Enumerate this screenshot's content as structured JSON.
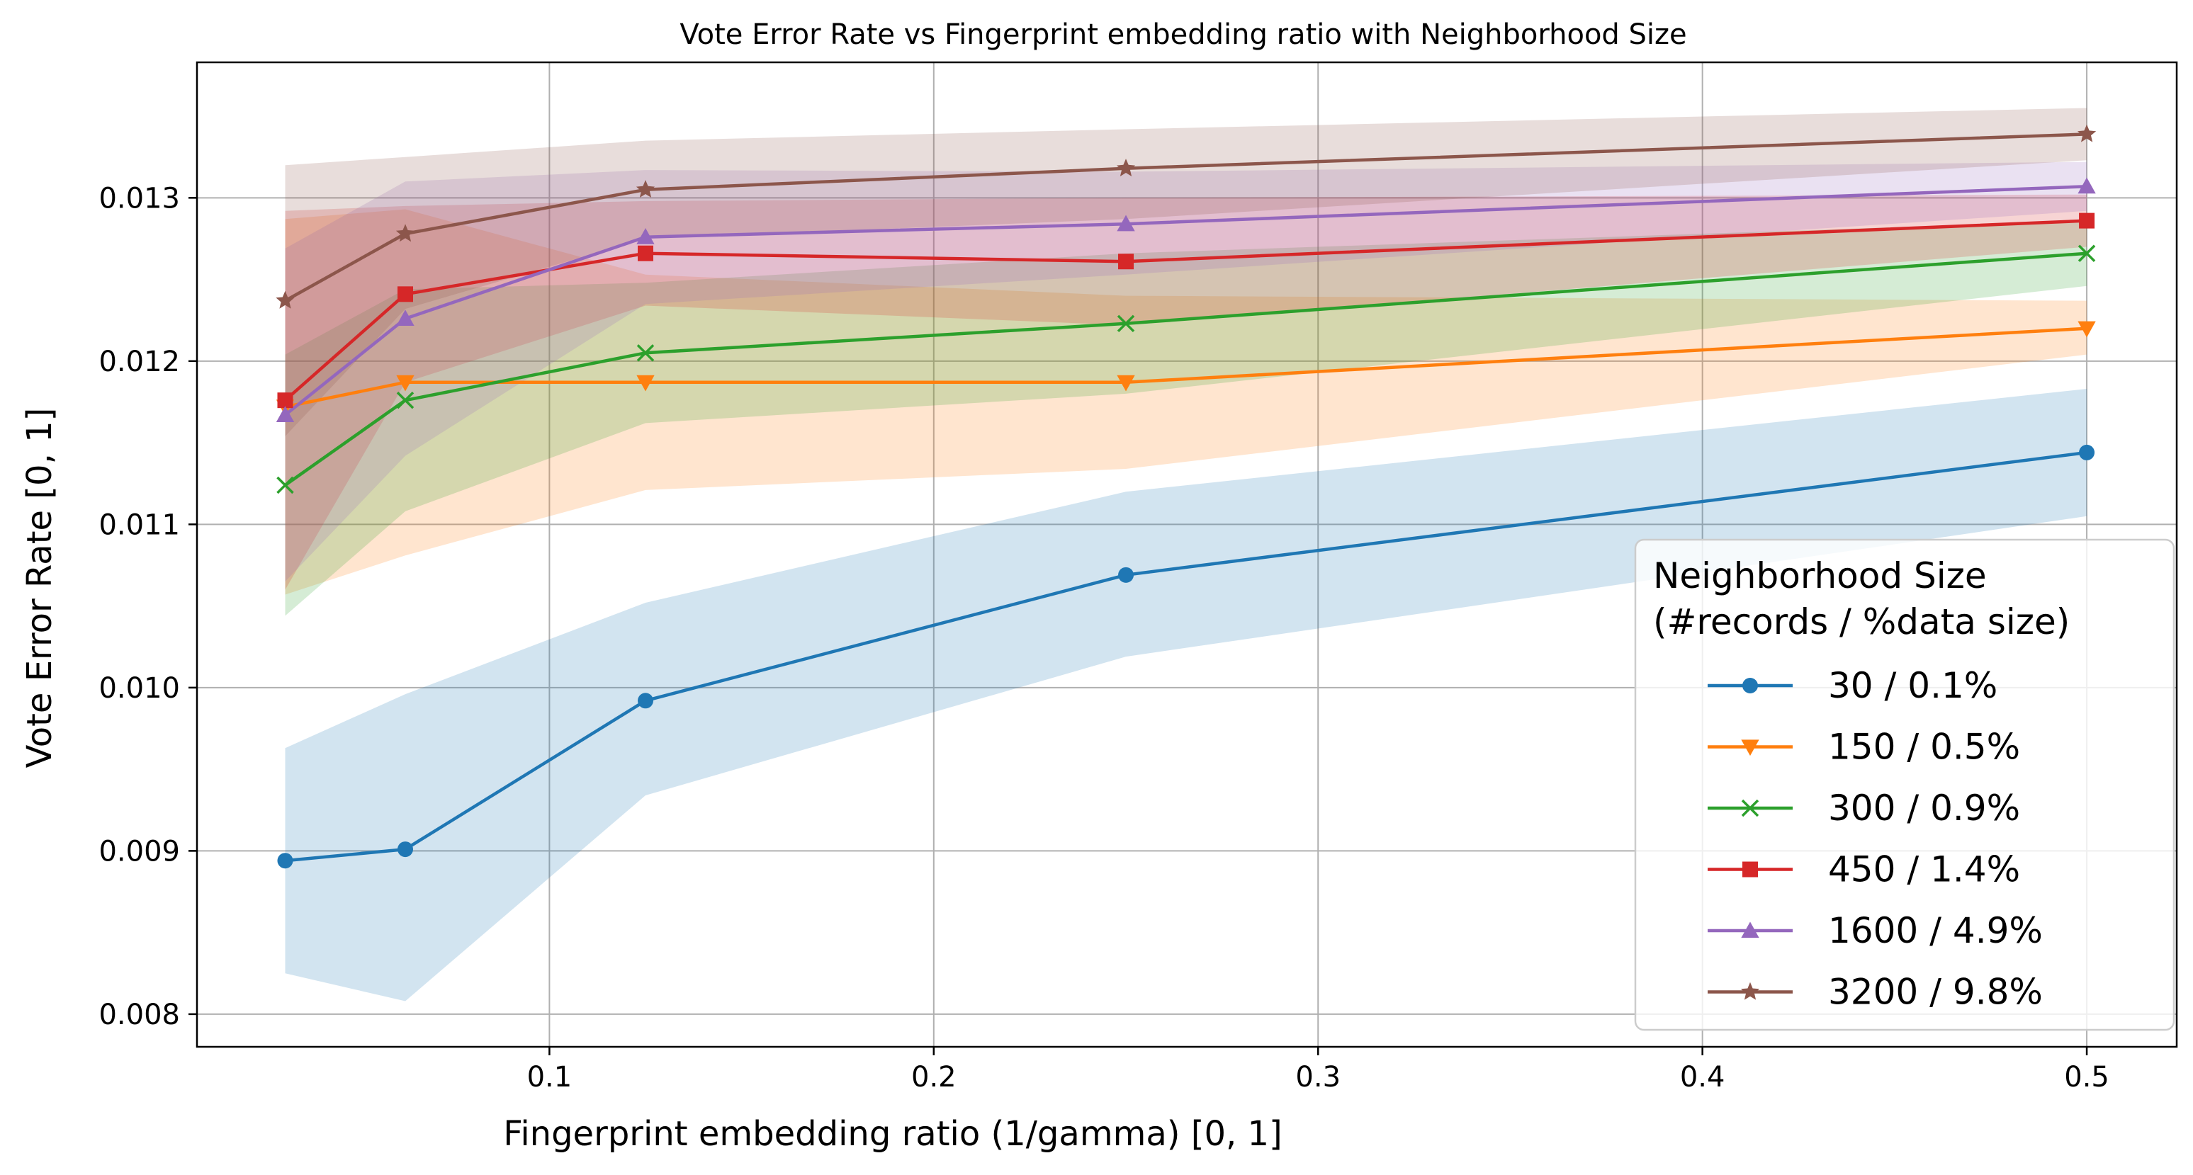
{
  "chart_data": {
    "type": "line",
    "title": "Vote Error Rate vs Fingerprint embedding ratio with Neighborhood Size",
    "xlabel": "Fingerprint embedding ratio (1/gamma) [0, 1]",
    "ylabel": "Vote Error Rate [0, 1]",
    "xlim": [
      0.0083,
      0.5234
    ],
    "ylim": [
      0.0078,
      0.01383
    ],
    "xticks": [
      0.1,
      0.2,
      0.3,
      0.4,
      0.5
    ],
    "xtick_labels": [
      "0.1",
      "0.2",
      "0.3",
      "0.4",
      "0.5"
    ],
    "yticks": [
      0.008,
      0.009,
      0.01,
      0.011,
      0.012,
      0.013
    ],
    "ytick_labels": [
      "0.008",
      "0.009",
      "0.010",
      "0.011",
      "0.012",
      "0.013"
    ],
    "grid": true,
    "legend": {
      "title_line1": "Neighborhood Size",
      "title_line2": "(#records / %data size)",
      "placement": "lower-right"
    },
    "x": [
      0.03125,
      0.0625,
      0.125,
      0.25,
      0.5
    ],
    "series": [
      {
        "name": "30 / 0.1%",
        "color": "#1f77b4",
        "marker": "circle",
        "values": [
          0.00894,
          0.00901,
          0.00992,
          0.01069,
          0.01144
        ],
        "lower": [
          0.00825,
          0.00808,
          0.00934,
          0.01019,
          0.01105
        ],
        "upper": [
          0.00963,
          0.00996,
          0.01052,
          0.0112,
          0.01183
        ]
      },
      {
        "name": "150 / 0.5%",
        "color": "#ff7f0e",
        "marker": "triangle-down",
        "values": [
          0.01172,
          0.01187,
          0.01187,
          0.01187,
          0.0122
        ],
        "lower": [
          0.01057,
          0.01081,
          0.01121,
          0.01134,
          0.01204
        ],
        "upper": [
          0.01287,
          0.01293,
          0.01253,
          0.0124,
          0.01237
        ]
      },
      {
        "name": "300 / 0.9%",
        "color": "#2ca02c",
        "marker": "x",
        "values": [
          0.01124,
          0.01176,
          0.01205,
          0.01223,
          0.01266
        ],
        "lower": [
          0.01044,
          0.01108,
          0.01162,
          0.0118,
          0.01246
        ],
        "upper": [
          0.01204,
          0.01244,
          0.01248,
          0.01266,
          0.01286
        ]
      },
      {
        "name": "450 / 1.4%",
        "color": "#d62728",
        "marker": "square",
        "values": [
          0.01176,
          0.01241,
          0.01266,
          0.01261,
          0.01286
        ],
        "lower": [
          0.0106,
          0.01187,
          0.01234,
          0.01222,
          0.0127
        ],
        "upper": [
          0.01292,
          0.01295,
          0.01298,
          0.013,
          0.01302
        ]
      },
      {
        "name": "1600 / 4.9%",
        "color": "#9467bd",
        "marker": "triangle-up",
        "values": [
          0.01167,
          0.01226,
          0.01276,
          0.01284,
          0.01307
        ],
        "lower": [
          0.01065,
          0.01142,
          0.01235,
          0.01253,
          0.01292
        ],
        "upper": [
          0.01269,
          0.0131,
          0.01317,
          0.01316,
          0.01322
        ]
      },
      {
        "name": "3200 / 9.8%",
        "color": "#8c564b",
        "marker": "star",
        "values": [
          0.01237,
          0.01278,
          0.01305,
          0.01318,
          0.01339
        ],
        "lower": [
          0.01154,
          0.01232,
          0.01275,
          0.01287,
          0.01323
        ],
        "upper": [
          0.0132,
          0.01325,
          0.01335,
          0.01342,
          0.01355
        ]
      }
    ]
  }
}
